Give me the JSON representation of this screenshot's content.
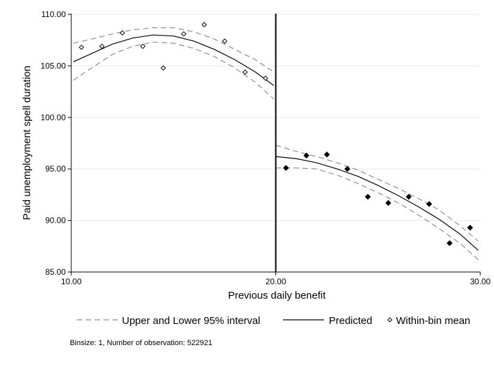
{
  "chart_data": {
    "type": "scatter",
    "xlabel": "Previous daily benefit",
    "ylabel": "Paid unemployment spell duration",
    "xlim": [
      10,
      30
    ],
    "ylim": [
      85,
      110
    ],
    "x_ticks": [
      "10.00",
      "20.00",
      "30.00"
    ],
    "y_ticks": [
      "85.00",
      "90.00",
      "95.00",
      "100.00",
      "105.00",
      "110.00"
    ],
    "grid": "horizontal",
    "cutoff": 20,
    "series": [
      {
        "name": "Within-bin mean",
        "marker": "hollow-diamond",
        "x": [
          10.5,
          11.5,
          12.5,
          13.5,
          14.5,
          15.5,
          16.5,
          17.5,
          18.5,
          19.5
        ],
        "y": [
          106.8,
          106.9,
          108.2,
          106.9,
          104.8,
          108.1,
          109.0,
          107.4,
          104.4,
          103.8
        ]
      },
      {
        "name": "",
        "marker": "filled-diamond",
        "x": [
          20.5,
          21.5,
          22.5,
          23.5,
          24.5,
          25.5,
          26.5,
          27.5,
          28.5,
          29.5
        ],
        "y": [
          95.1,
          96.3,
          96.4,
          95.0,
          92.3,
          91.7,
          92.3,
          91.6,
          87.8,
          89.3
        ]
      },
      {
        "name": "Predicted",
        "style": "solid",
        "segments": [
          {
            "x": [
              10.1,
              11,
              12,
              13,
              14,
              15,
              16,
              17,
              18,
              19,
              19.9
            ],
            "y": [
              105.4,
              106.2,
              107.1,
              107.7,
              108.0,
              107.9,
              107.4,
              106.6,
              105.6,
              104.4,
              103.1
            ]
          },
          {
            "x": [
              20,
              21,
              22,
              23,
              24,
              25,
              26,
              27,
              28,
              29,
              29.9
            ],
            "y": [
              96.2,
              96.0,
              95.6,
              95.0,
              94.3,
              93.4,
              92.4,
              91.3,
              90.1,
              88.7,
              87.1
            ]
          }
        ]
      },
      {
        "name": "Upper and Lower 95% interval",
        "style": "dashed",
        "segments": [
          {
            "x": [
              10.1,
              11,
              12,
              13,
              14,
              15,
              16,
              17,
              18,
              19,
              19.9
            ],
            "y": [
              107.2,
              107.6,
              108.1,
              108.5,
              108.7,
              108.7,
              108.3,
              107.6,
              106.6,
              105.6,
              104.4
            ]
          },
          {
            "x": [
              10.1,
              11,
              12,
              13,
              14,
              15,
              16,
              17,
              18,
              19,
              19.9
            ],
            "y": [
              103.6,
              104.8,
              106.1,
              106.9,
              107.3,
              107.2,
              106.7,
              105.9,
              104.8,
              103.4,
              101.8
            ]
          },
          {
            "x": [
              20,
              21,
              22,
              23,
              24,
              25,
              26,
              27,
              28,
              29,
              29.9
            ],
            "y": [
              97.3,
              96.7,
              96.2,
              95.6,
              94.9,
              94.0,
              93.1,
              92.1,
              91.0,
              89.5,
              88.0
            ]
          },
          {
            "x": [
              20,
              21,
              22,
              23,
              24,
              25,
              26,
              27,
              28,
              29,
              29.9
            ],
            "y": [
              95.1,
              95.1,
              95.0,
              94.4,
              93.6,
              92.7,
              91.7,
              90.5,
              89.2,
              87.8,
              86.2
            ]
          }
        ]
      }
    ],
    "legend": {
      "placement": "bottom",
      "entries": [
        "Upper and Lower 95% interval",
        "Predicted",
        "Within-bin mean"
      ]
    },
    "note": "Binsize: 1, Number of observation: 522921"
  }
}
